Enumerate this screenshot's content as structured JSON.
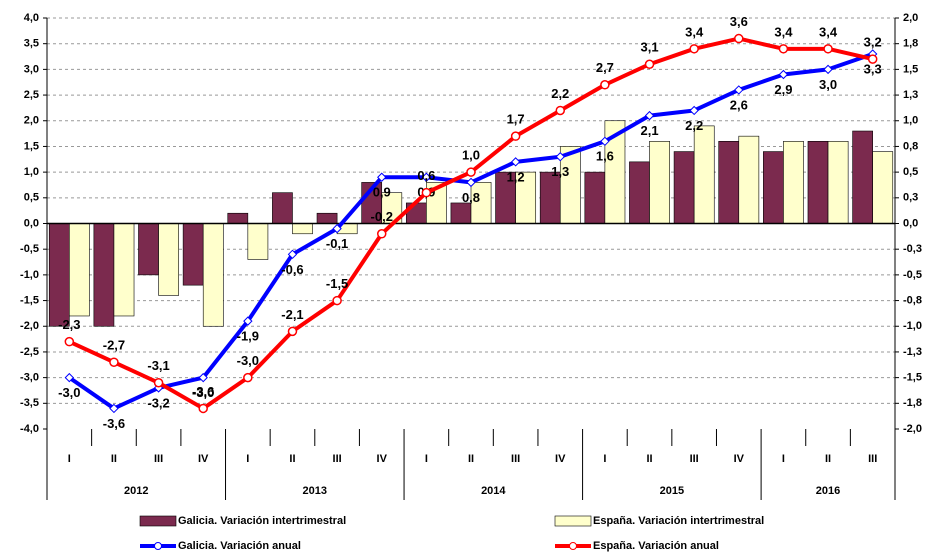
{
  "chart_data": {
    "type": "combo",
    "category_groups": [
      {
        "label": "2012",
        "categories": [
          "I",
          "II",
          "III",
          "IV"
        ]
      },
      {
        "label": "2013",
        "categories": [
          "I",
          "II",
          "III",
          "IV"
        ]
      },
      {
        "label": "2014",
        "categories": [
          "I",
          "II",
          "III",
          "IV"
        ]
      },
      {
        "label": "2015",
        "categories": [
          "I",
          "II",
          "III",
          "IV"
        ]
      },
      {
        "label": "2016",
        "categories": [
          "I",
          "II",
          "III"
        ]
      }
    ],
    "ylim": [
      -4,
      4
    ],
    "yticks": [
      {
        "value": 4,
        "label": "4,0"
      },
      {
        "value": 3.5,
        "label": "3,5"
      },
      {
        "value": 3,
        "label": "3,0"
      },
      {
        "value": 2.5,
        "label": "2,5"
      },
      {
        "value": 2,
        "label": "2,0"
      },
      {
        "value": 1.5,
        "label": "1,5"
      },
      {
        "value": 1,
        "label": "1,0"
      },
      {
        "value": 0.5,
        "label": "0,5"
      },
      {
        "value": 0,
        "label": "0,0"
      },
      {
        "value": -0.5,
        "label": "-0,5"
      },
      {
        "value": -1,
        "label": "-1,0"
      },
      {
        "value": -1.5,
        "label": "-1,5"
      },
      {
        "value": -2,
        "label": "-2,0"
      },
      {
        "value": -2.5,
        "label": "-2,5"
      },
      {
        "value": -3,
        "label": "-3,0"
      },
      {
        "value": -3.5,
        "label": "-3,5"
      },
      {
        "value": -4,
        "label": "-4,0"
      }
    ],
    "y2lim": [
      -2,
      2
    ],
    "y2ticks": [
      {
        "value": 2,
        "label": "2,0"
      },
      {
        "value": 1.75,
        "label": "1,8"
      },
      {
        "value": 1.5,
        "label": "1,5"
      },
      {
        "value": 1.25,
        "label": "1,3"
      },
      {
        "value": 1,
        "label": "1,0"
      },
      {
        "value": 0.75,
        "label": "0,8"
      },
      {
        "value": 0.5,
        "label": "0,5"
      },
      {
        "value": 0.25,
        "label": "0,3"
      },
      {
        "value": 0,
        "label": "0,0"
      },
      {
        "value": -0.25,
        "label": "-0,3"
      },
      {
        "value": -0.5,
        "label": "-0,5"
      },
      {
        "value": -0.75,
        "label": "-0,8"
      },
      {
        "value": -1,
        "label": "-1,0"
      },
      {
        "value": -1.25,
        "label": "-1,3"
      },
      {
        "value": -1.5,
        "label": "-1,5"
      },
      {
        "value": -1.75,
        "label": "-1,8"
      },
      {
        "value": -2,
        "label": "-2,0"
      }
    ],
    "grid": true,
    "series": [
      {
        "name": "Galicia. Variación intertrimestral",
        "type": "bar",
        "axis": "y2",
        "color": "#7b2a4e",
        "values": [
          -1.0,
          -1.0,
          -0.5,
          -0.6,
          0.1,
          0.3,
          0.1,
          0.4,
          0.2,
          0.2,
          0.5,
          0.5,
          0.5,
          0.6,
          0.7,
          0.8,
          0.7,
          0.8,
          0.9
        ]
      },
      {
        "name": "España. Variación intertrimestral",
        "type": "bar",
        "axis": "y2",
        "color": "#ffffcc",
        "values": [
          -0.9,
          -0.9,
          -0.7,
          -1.0,
          -0.35,
          -0.1,
          -0.1,
          0.3,
          0.4,
          0.4,
          0.5,
          0.75,
          1.0,
          0.8,
          0.95,
          0.85,
          0.8,
          0.8,
          0.7
        ]
      },
      {
        "name": "Galicia. Variación anual",
        "type": "line",
        "color": "#0000ff",
        "label_side": "below",
        "values": [
          -3.0,
          -3.6,
          -3.2,
          -3.0,
          -1.9,
          -0.6,
          -0.1,
          0.9,
          0.9,
          0.8,
          1.2,
          1.3,
          1.6,
          2.1,
          2.2,
          2.6,
          2.9,
          3.0,
          3.3
        ],
        "value_labels": [
          "-3,0",
          "-3,6",
          "-3,2",
          "-3,0",
          "-1,9",
          "-0,6",
          "-0,1",
          "0,9",
          "0,9",
          "0,8",
          "1,2",
          "1,3",
          "1,6",
          "2,1",
          "2,2",
          "2,6",
          "2,9",
          "3,0",
          "3,3"
        ]
      },
      {
        "name": "España. Variación anual",
        "type": "line",
        "color": "#ff0000",
        "label_side": "above",
        "values": [
          -2.3,
          -2.7,
          -3.1,
          -3.6,
          -3.0,
          -2.1,
          -1.5,
          -0.2,
          0.6,
          1.0,
          1.7,
          2.2,
          2.7,
          3.1,
          3.4,
          3.6,
          3.4,
          3.4,
          3.2
        ],
        "value_labels": [
          "-2,3",
          "-2,7",
          "-3,1",
          "-3,6",
          "-3,0",
          "-2,1",
          "-1,5",
          "-0,2",
          "0,6",
          "1,0",
          "1,7",
          "2,2",
          "2,7",
          "3,1",
          "3,4",
          "3,6",
          "3,4",
          "3,4",
          "3,2"
        ]
      }
    ]
  }
}
